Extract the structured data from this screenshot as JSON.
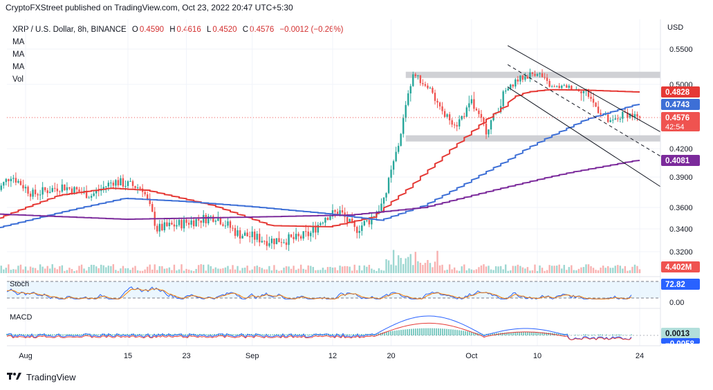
{
  "header": {
    "publisher_text": "CryptoFXStreet published on TradingView.com, Oct 23, 2022 20:47 UTC+5:30"
  },
  "legend": {
    "symbol": "XRP / U.S. Dollar, 8h, BINANCE",
    "open_label": "O",
    "open": "0.4590",
    "high_label": "H",
    "high": "0.4616",
    "low_label": "L",
    "low": "0.4520",
    "close_label": "C",
    "close": "0.4576",
    "change": "−0.0012 (−0.26%)",
    "indicators": [
      "MA",
      "MA",
      "MA",
      "Vol"
    ]
  },
  "footer": {
    "brand": "TradingView"
  },
  "colors": {
    "up": "#26a69a",
    "down": "#ef5350",
    "ma50": "#e53935",
    "ma100": "#3d6fd6",
    "ma200": "#7b2a9b",
    "level_band": "#c8c9ce",
    "stoch_k": "#2962ff",
    "stoch_d": "#f57c00",
    "macd": "#2962ff",
    "signal": "#e53935"
  },
  "chart_data": {
    "type": "candlestick",
    "price_axis": {
      "label": "USD",
      "ticks": [
        "0.5500",
        "0.5000",
        "0.4200",
        "0.3900",
        "0.3600",
        "0.3400",
        "0.3200"
      ],
      "tick_values": [
        0.55,
        0.5,
        0.42,
        0.39,
        0.36,
        0.34,
        0.32
      ]
    },
    "time_axis": {
      "ticks": [
        "Aug",
        "15",
        "23",
        "Sep",
        "12",
        "20",
        "Oct",
        "10",
        "24"
      ],
      "tick_dates": [
        "2022-08-01",
        "2022-08-15",
        "2022-08-23",
        "2022-09-01",
        "2022-09-12",
        "2022-09-20",
        "2022-10-01",
        "2022-10-10",
        "2022-10-24"
      ]
    },
    "price_labels": [
      {
        "text": "0.4828",
        "value": 0.4828,
        "color": "#e53935",
        "name": "ma50-value"
      },
      {
        "text": "0.4743",
        "value": 0.4743,
        "color": "#3d6fd6",
        "name": "ma100-value"
      },
      {
        "text": "0.4576",
        "value": 0.4576,
        "color": "#ef5350",
        "name": "last-price"
      },
      {
        "text": "0.4081",
        "value": 0.4081,
        "color": "#7b2a9b",
        "name": "ma200-value"
      }
    ],
    "countdown": "42:54",
    "horizontal_levels": [
      0.513,
      0.432
    ],
    "channel": {
      "upper": [
        [
          "2022-10-05",
          0.555
        ],
        [
          "2022-10-24",
          0.447
        ]
      ],
      "middle": [
        [
          "2022-10-05",
          0.528
        ],
        [
          "2022-10-24",
          0.418
        ]
      ],
      "lower": [
        [
          "2022-10-05",
          0.494
        ],
        [
          "2022-10-24",
          0.386
        ]
      ]
    },
    "ohlc_anchors": [
      [
        "2022-07-28",
        0.375
      ],
      [
        "2022-07-30",
        0.392
      ],
      [
        "2022-08-02",
        0.373
      ],
      [
        "2022-08-06",
        0.381
      ],
      [
        "2022-08-10",
        0.372
      ],
      [
        "2022-08-13",
        0.386
      ],
      [
        "2022-08-17",
        0.379
      ],
      [
        "2022-08-19",
        0.34
      ],
      [
        "2022-08-23",
        0.346
      ],
      [
        "2022-08-27",
        0.352
      ],
      [
        "2022-08-30",
        0.336
      ],
      [
        "2022-09-03",
        0.33
      ],
      [
        "2022-09-07",
        0.331
      ],
      [
        "2022-09-09",
        0.336
      ],
      [
        "2022-09-11",
        0.352
      ],
      [
        "2022-09-13",
        0.356
      ],
      [
        "2022-09-15",
        0.339
      ],
      [
        "2022-09-17",
        0.348
      ],
      [
        "2022-09-19",
        0.365
      ],
      [
        "2022-09-21",
        0.425
      ],
      [
        "2022-09-23",
        0.515
      ],
      [
        "2022-09-25",
        0.496
      ],
      [
        "2022-09-27",
        0.462
      ],
      [
        "2022-09-29",
        0.45
      ],
      [
        "2022-10-01",
        0.475
      ],
      [
        "2022-10-03",
        0.442
      ],
      [
        "2022-10-05",
        0.475
      ],
      [
        "2022-10-07",
        0.505
      ],
      [
        "2022-10-10",
        0.518
      ],
      [
        "2022-10-12",
        0.493
      ],
      [
        "2022-10-14",
        0.495
      ],
      [
        "2022-10-17",
        0.482
      ],
      [
        "2022-10-20",
        0.45
      ],
      [
        "2022-10-22",
        0.463
      ],
      [
        "2022-10-24",
        0.4576
      ]
    ],
    "ma50": [
      [
        "2022-07-28",
        0.348
      ],
      [
        "2022-08-06",
        0.372
      ],
      [
        "2022-08-13",
        0.379
      ],
      [
        "2022-08-18",
        0.377
      ],
      [
        "2022-08-27",
        0.362
      ],
      [
        "2022-09-04",
        0.343
      ],
      [
        "2022-09-12",
        0.342
      ],
      [
        "2022-09-18",
        0.351
      ],
      [
        "2022-09-23",
        0.38
      ],
      [
        "2022-09-29",
        0.422
      ],
      [
        "2022-10-03",
        0.452
      ],
      [
        "2022-10-07",
        0.479
      ],
      [
        "2022-10-12",
        0.488
      ],
      [
        "2022-10-17",
        0.487
      ],
      [
        "2022-10-24",
        0.4828
      ]
    ],
    "ma100": [
      [
        "2022-07-28",
        0.34
      ],
      [
        "2022-08-06",
        0.355
      ],
      [
        "2022-08-15",
        0.369
      ],
      [
        "2022-08-23",
        0.366
      ],
      [
        "2022-09-01",
        0.361
      ],
      [
        "2022-09-12",
        0.354
      ],
      [
        "2022-09-19",
        0.348
      ],
      [
        "2022-09-25",
        0.362
      ],
      [
        "2022-10-01",
        0.385
      ],
      [
        "2022-10-07",
        0.411
      ],
      [
        "2022-10-12",
        0.434
      ],
      [
        "2022-10-17",
        0.455
      ],
      [
        "2022-10-24",
        0.4743
      ]
    ],
    "ma200": [
      [
        "2022-07-28",
        0.354
      ],
      [
        "2022-08-15",
        0.349
      ],
      [
        "2022-09-01",
        0.351
      ],
      [
        "2022-09-15",
        0.353
      ],
      [
        "2022-09-25",
        0.36
      ],
      [
        "2022-10-05",
        0.378
      ],
      [
        "2022-10-15",
        0.395
      ],
      [
        "2022-10-24",
        0.4081
      ]
    ],
    "volume": {
      "label": "4.402M",
      "value": 4402000
    },
    "stoch": {
      "label": "Stoch",
      "axis_ticks": [
        "0.00"
      ],
      "value": "72.82",
      "bands": [
        80,
        20
      ]
    },
    "macd": {
      "label": "MACD",
      "macd_value": "0.0013",
      "signal_value": "−0.0058"
    }
  }
}
